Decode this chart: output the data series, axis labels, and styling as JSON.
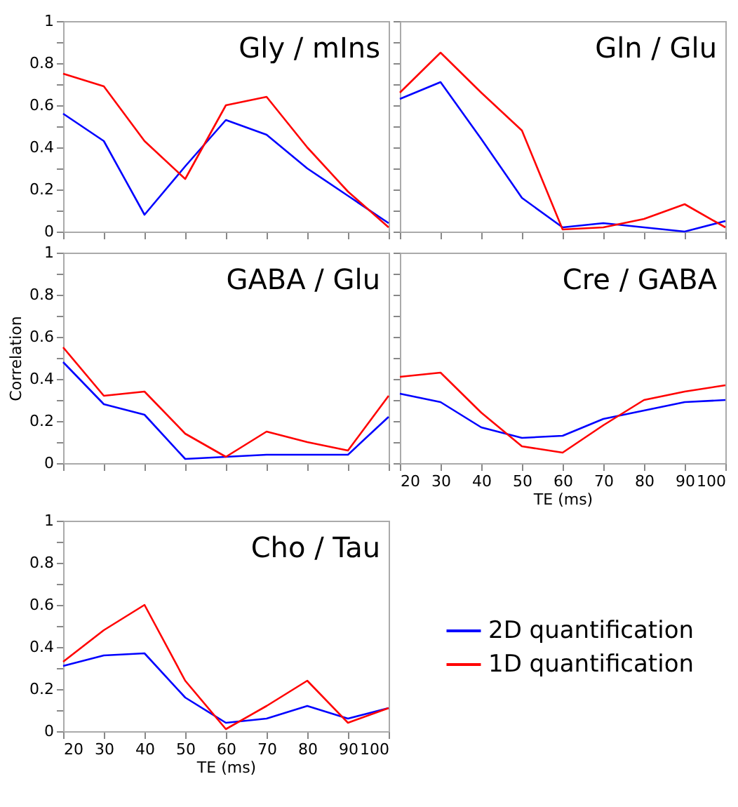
{
  "chart_data": [
    {
      "type": "line",
      "title": "Gly / mIns",
      "x": [
        20,
        30,
        40,
        50,
        60,
        70,
        80,
        90,
        100
      ],
      "xlim": [
        20,
        100
      ],
      "ylim": [
        0,
        1
      ],
      "xticks": [
        20,
        30,
        40,
        50,
        60,
        70,
        80,
        90,
        100
      ],
      "yticks": [
        0,
        {
          "value": 0.1,
          "label": null
        },
        0.2,
        {
          "value": 0.3,
          "label": null
        },
        0.4,
        {
          "value": 0.5,
          "label": null
        },
        0.6,
        {
          "value": 0.7,
          "label": null
        },
        0.8,
        {
          "value": 0.9,
          "label": null
        },
        1
      ],
      "tick_labels": "y",
      "grid": false,
      "series": [
        {
          "color": "#0000ff",
          "values": [
            0.56,
            0.43,
            0.08,
            0.31,
            0.53,
            0.46,
            0.3,
            0.17,
            0.04
          ]
        },
        {
          "color": "#ff0000",
          "values": [
            0.75,
            0.69,
            0.43,
            0.25,
            0.6,
            0.64,
            0.4,
            0.19,
            0.02
          ]
        }
      ]
    },
    {
      "type": "line",
      "title": "Gln / Glu",
      "x": [
        20,
        30,
        40,
        50,
        60,
        70,
        80,
        90,
        100
      ],
      "xlim": [
        20,
        100
      ],
      "ylim": [
        0,
        1
      ],
      "xticks": [
        20,
        30,
        40,
        50,
        60,
        70,
        80,
        90,
        100
      ],
      "yticks": [
        0,
        {
          "value": 0.1,
          "label": null
        },
        0.2,
        {
          "value": 0.3,
          "label": null
        },
        0.4,
        {
          "value": 0.5,
          "label": null
        },
        0.6,
        {
          "value": 0.7,
          "label": null
        },
        0.8,
        {
          "value": 0.9,
          "label": null
        },
        1
      ],
      "tick_labels": false,
      "grid": false,
      "series": [
        {
          "color": "#0000ff",
          "values": [
            0.63,
            0.71,
            0.44,
            0.16,
            0.02,
            0.04,
            0.02,
            0.0,
            0.05
          ]
        },
        {
          "color": "#ff0000",
          "values": [
            0.66,
            0.85,
            0.66,
            0.48,
            0.01,
            0.02,
            0.06,
            0.13,
            0.02
          ]
        }
      ]
    },
    {
      "type": "line",
      "title": "GABA / Glu",
      "ylabel": "Correlation",
      "x": [
        20,
        30,
        40,
        50,
        60,
        70,
        80,
        90,
        100
      ],
      "xlim": [
        20,
        100
      ],
      "ylim": [
        0,
        1
      ],
      "xticks": [
        20,
        30,
        40,
        50,
        60,
        70,
        80,
        90,
        100
      ],
      "yticks": [
        0,
        {
          "value": 0.1,
          "label": null
        },
        0.2,
        {
          "value": 0.3,
          "label": null
        },
        0.4,
        {
          "value": 0.5,
          "label": null
        },
        0.6,
        {
          "value": 0.7,
          "label": null
        },
        0.8,
        {
          "value": 0.9,
          "label": null
        },
        1
      ],
      "tick_labels": "y",
      "grid": false,
      "series": [
        {
          "color": "#0000ff",
          "values": [
            0.48,
            0.28,
            0.23,
            0.02,
            0.03,
            0.04,
            0.04,
            0.04,
            0.22
          ]
        },
        {
          "color": "#ff0000",
          "values": [
            0.55,
            0.32,
            0.34,
            0.14,
            0.03,
            0.15,
            0.1,
            0.06,
            0.32
          ]
        }
      ]
    },
    {
      "type": "line",
      "title": "Cre / GABA",
      "xlabel": "TE (ms)",
      "x": [
        20,
        30,
        40,
        50,
        60,
        70,
        80,
        90,
        100
      ],
      "xlim": [
        20,
        100
      ],
      "ylim": [
        0,
        1
      ],
      "xticks": [
        20,
        30,
        40,
        50,
        60,
        70,
        80,
        90,
        100
      ],
      "yticks": [
        0,
        {
          "value": 0.1,
          "label": null
        },
        0.2,
        {
          "value": 0.3,
          "label": null
        },
        0.4,
        {
          "value": 0.5,
          "label": null
        },
        0.6,
        {
          "value": 0.7,
          "label": null
        },
        0.8,
        {
          "value": 0.9,
          "label": null
        },
        1
      ],
      "tick_labels": "x",
      "grid": false,
      "series": [
        {
          "color": "#0000ff",
          "values": [
            0.33,
            0.29,
            0.17,
            0.12,
            0.13,
            0.21,
            0.25,
            0.29,
            0.3
          ]
        },
        {
          "color": "#ff0000",
          "values": [
            0.41,
            0.43,
            0.24,
            0.08,
            0.05,
            0.18,
            0.3,
            0.34,
            0.37
          ]
        }
      ]
    },
    {
      "type": "line",
      "title": "Cho / Tau",
      "xlabel": "TE (ms)",
      "x": [
        20,
        30,
        40,
        50,
        60,
        70,
        80,
        90,
        100
      ],
      "xlim": [
        20,
        100
      ],
      "ylim": [
        0,
        1
      ],
      "xticks": [
        20,
        30,
        40,
        50,
        60,
        70,
        80,
        90,
        100
      ],
      "yticks": [
        0,
        {
          "value": 0.1,
          "label": null
        },
        0.2,
        {
          "value": 0.3,
          "label": null
        },
        0.4,
        {
          "value": 0.5,
          "label": null
        },
        0.6,
        {
          "value": 0.7,
          "label": null
        },
        0.8,
        {
          "value": 0.9,
          "label": null
        },
        1
      ],
      "grid": false,
      "legend": "right",
      "series": [
        {
          "name": "2D quantification",
          "color": "#0000ff",
          "values": [
            0.31,
            0.36,
            0.37,
            0.16,
            0.04,
            0.06,
            0.12,
            0.06,
            0.11
          ]
        },
        {
          "name": "1D quantification",
          "color": "#ff0000",
          "values": [
            0.33,
            0.48,
            0.6,
            0.24,
            0.01,
            0.12,
            0.24,
            0.04,
            0.11
          ]
        }
      ]
    }
  ]
}
